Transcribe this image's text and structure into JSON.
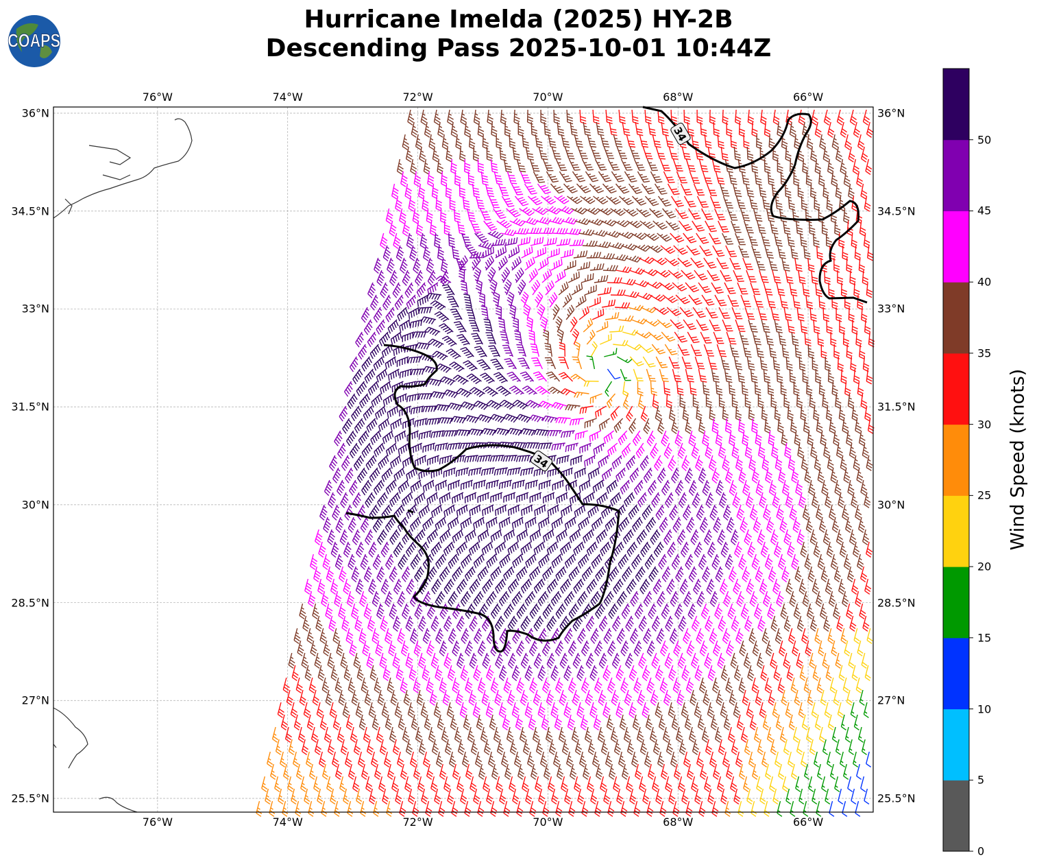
{
  "title_line1": "Hurricane Imelda (2025) HY-2B",
  "title_line2": "Descending Pass 2025-10-01 10:44Z",
  "logo_text": "COAPS",
  "map": {
    "extent": {
      "lon_west": -77.6,
      "lon_east": -65.0,
      "lat_south": 25.3,
      "lat_north": 36.1
    },
    "lon_ticks": [
      {
        "value": -76,
        "label": "76°W"
      },
      {
        "value": -74,
        "label": "74°W"
      },
      {
        "value": -72,
        "label": "72°W"
      },
      {
        "value": -70,
        "label": "70°W"
      },
      {
        "value": -68,
        "label": "68°W"
      },
      {
        "value": -66,
        "label": "66°W"
      }
    ],
    "lat_ticks": [
      {
        "value": 36,
        "label": "36°N"
      },
      {
        "value": 34.5,
        "label": "34.5°N"
      },
      {
        "value": 33,
        "label": "33°N"
      },
      {
        "value": 31.5,
        "label": "31.5°N"
      },
      {
        "value": 30,
        "label": "30°N"
      },
      {
        "value": 28.5,
        "label": "28.5°N"
      },
      {
        "value": 27,
        "label": "27°N"
      },
      {
        "value": 25.5,
        "label": "25.5°N"
      }
    ],
    "gridlines": true,
    "contour_label": "34",
    "contour_color": "#000000"
  },
  "colorbar": {
    "label": "Wind Speed (knots)",
    "bounds": [
      0,
      5,
      10,
      15,
      20,
      25,
      30,
      35,
      40,
      45,
      50,
      55
    ],
    "tick_labels": [
      "0",
      "5",
      "10",
      "15",
      "20",
      "25",
      "30",
      "35",
      "40",
      "45",
      "50"
    ],
    "colors": [
      "#595959",
      "#00bfff",
      "#0033ff",
      "#009900",
      "#ffd20f",
      "#ff8c0a",
      "#ff1010",
      "#7f3b28",
      "#ff00ff",
      "#8000b0",
      "#2e0060"
    ]
  }
}
